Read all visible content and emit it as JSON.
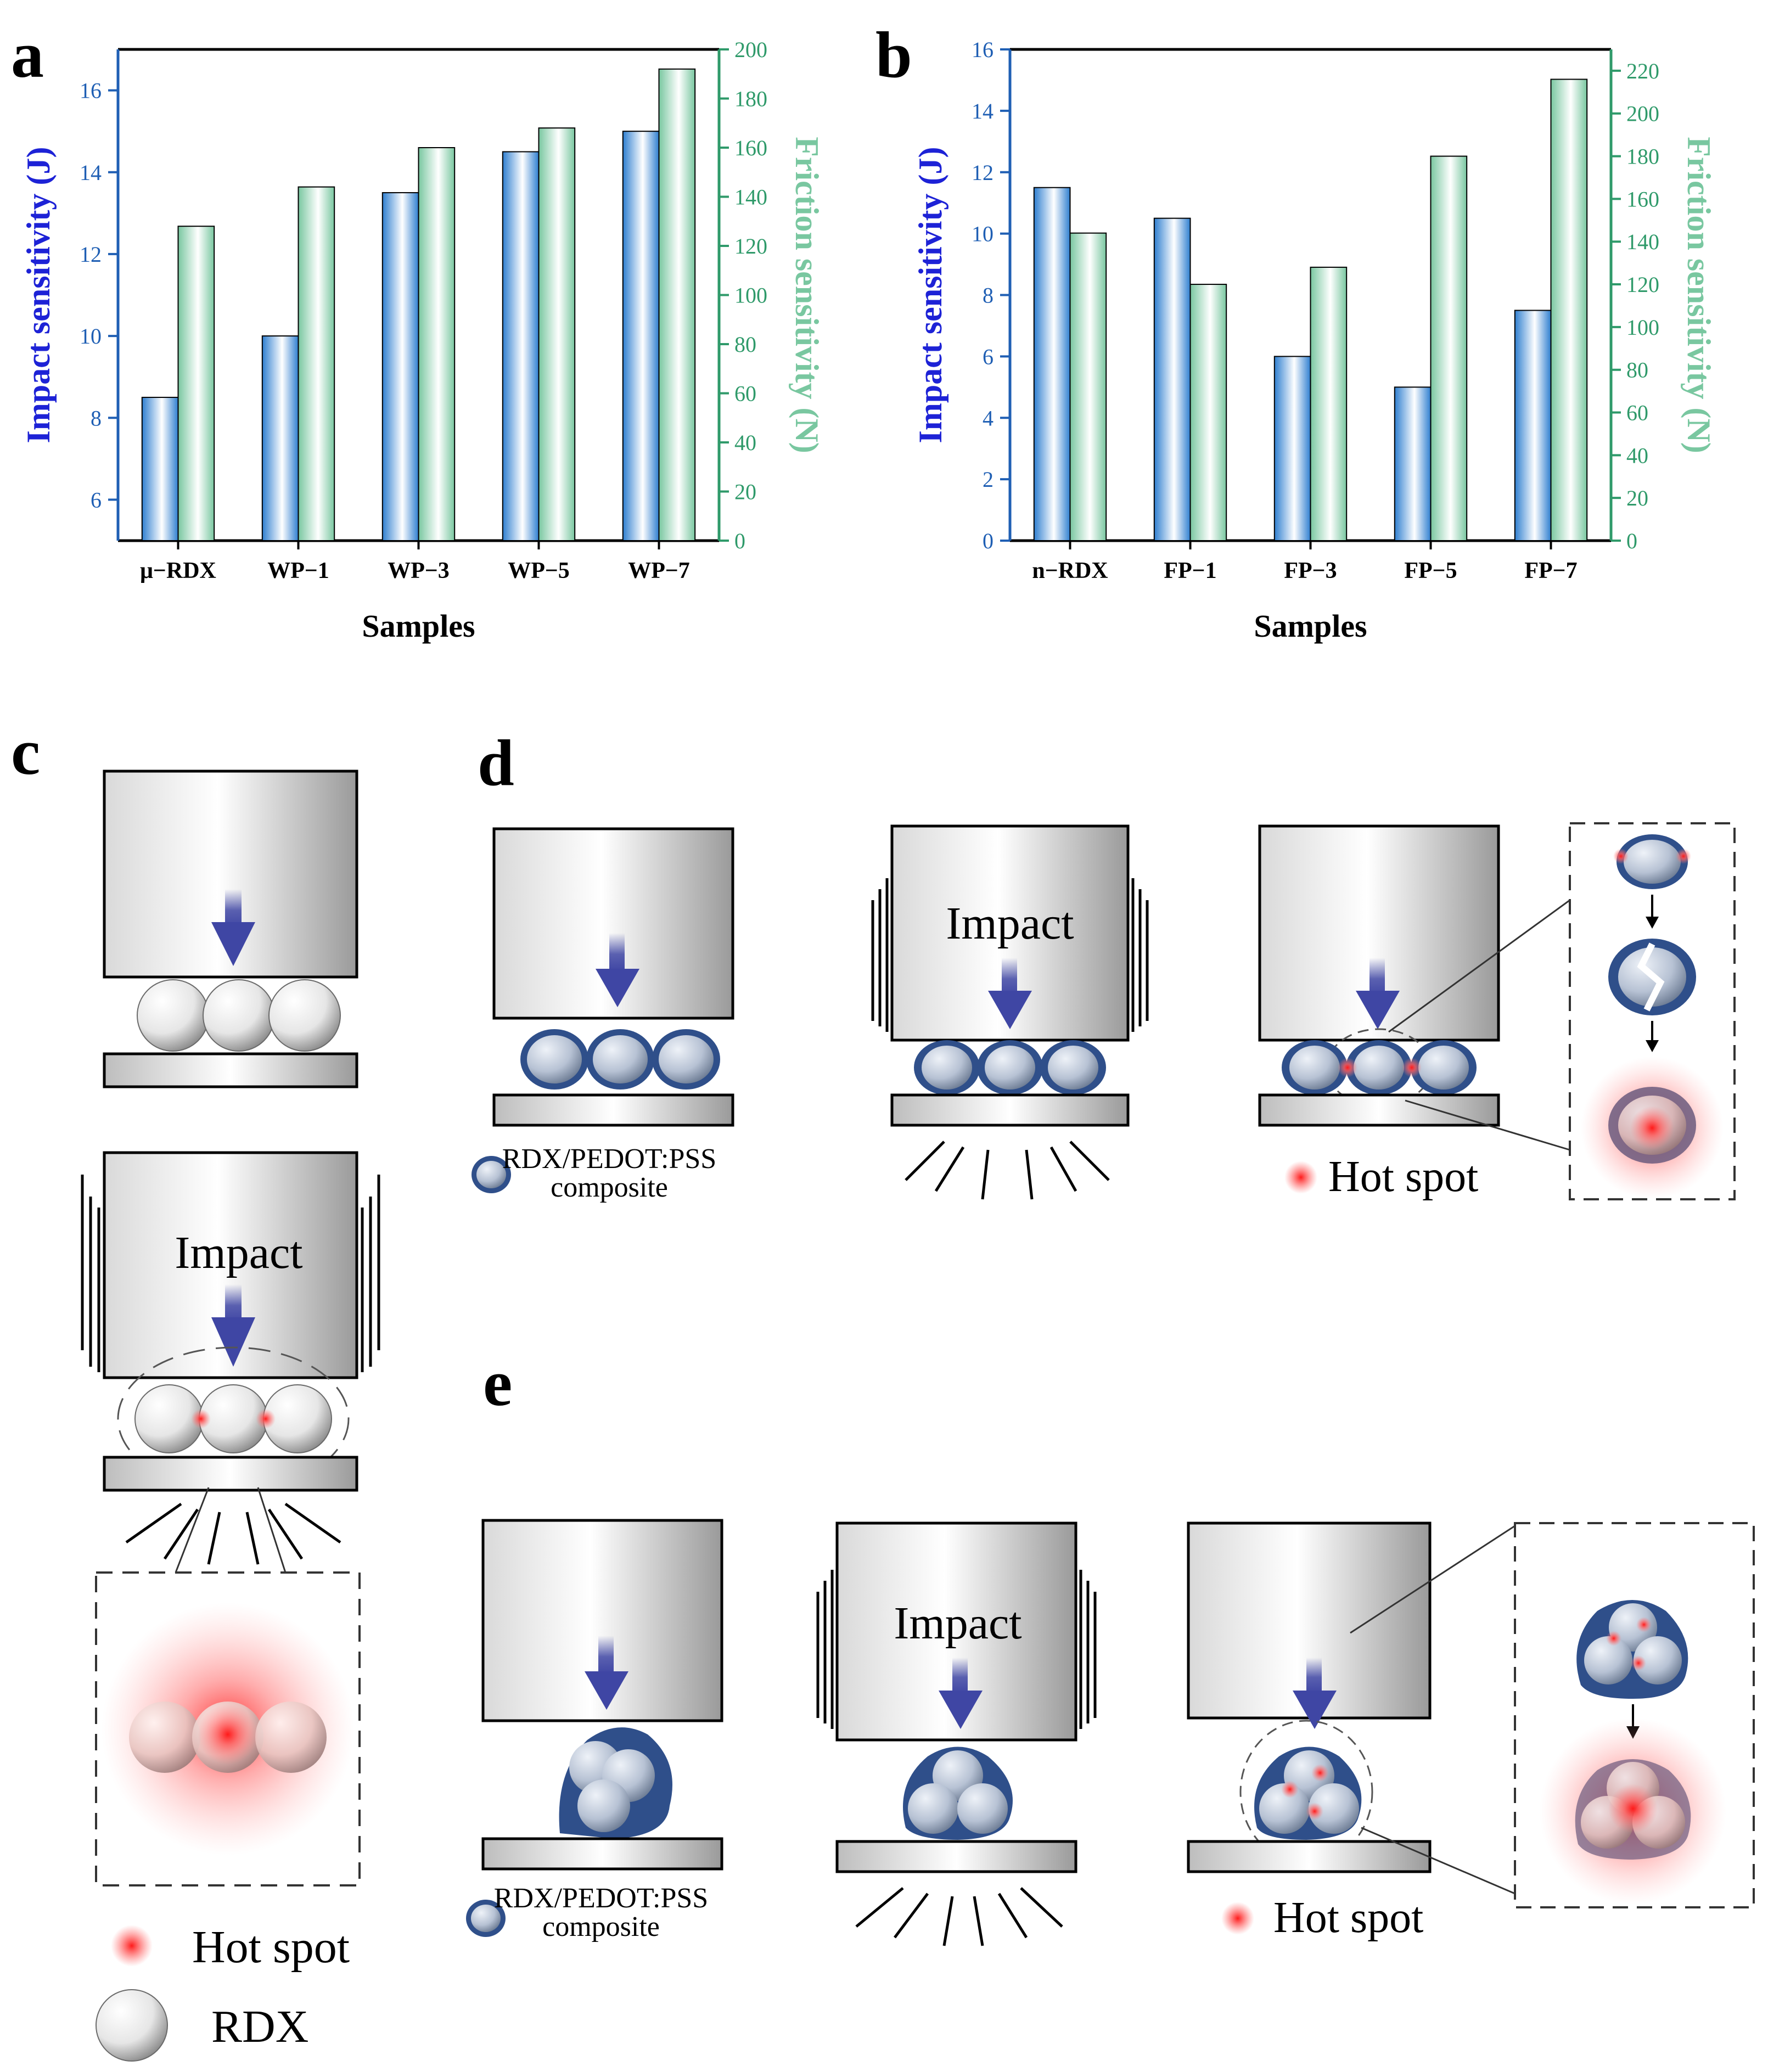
{
  "panel_labels": {
    "a": "a",
    "b": "b",
    "c": "c",
    "d": "d",
    "e": "e"
  },
  "colors": {
    "impact": "#2f7fd0",
    "friction": "#79c7a0",
    "impact_label": "#1d22d6",
    "left_axis": "#1f5fb4",
    "right_axis": "#2f9a6a",
    "composite_shell": "#2f4f8a",
    "arrow": "#3f46a4",
    "hot": "#ff2a2a"
  },
  "chart_data": [
    {
      "type": "bar",
      "panel": "a",
      "categories": [
        "μ−RDX",
        "WP−1",
        "WP−3",
        "WP−5",
        "WP−7"
      ],
      "series": [
        {
          "name": "Impact sensitivity (J)",
          "axis": "left",
          "values": [
            8.5,
            10,
            13.5,
            14.5,
            15
          ]
        },
        {
          "name": "Friction sensitivity (N)",
          "axis": "right",
          "values": [
            128,
            144,
            160,
            168,
            192
          ]
        }
      ],
      "xlabel": "Samples",
      "ylabel": "Impact sensitivity (J)",
      "y2label": "Friction sensitivity (N)",
      "ylim": [
        5,
        17
      ],
      "y2lim": [
        0,
        200
      ],
      "yticks": [
        6,
        8,
        10,
        12,
        14,
        16
      ],
      "y2ticks": [
        0,
        20,
        40,
        60,
        80,
        100,
        120,
        140,
        160,
        180,
        200
      ]
    },
    {
      "type": "bar",
      "panel": "b",
      "categories": [
        "n−RDX",
        "FP−1",
        "FP−3",
        "FP−5",
        "FP−7"
      ],
      "series": [
        {
          "name": "Impact sensitivity (J)",
          "axis": "left",
          "values": [
            11.5,
            10.5,
            6,
            5,
            7.5
          ]
        },
        {
          "name": "Friction sensitivity (N)",
          "axis": "right",
          "values": [
            144,
            120,
            128,
            180,
            216
          ]
        }
      ],
      "xlabel": "Samples",
      "ylabel": "Impact sensitivity (J)",
      "y2label": "Friction sensitivity (N)",
      "ylim": [
        0,
        16
      ],
      "y2lim": [
        0,
        230
      ],
      "yticks": [
        0,
        2,
        4,
        6,
        8,
        10,
        12,
        14,
        16
      ],
      "y2ticks": [
        0,
        20,
        40,
        60,
        80,
        100,
        120,
        140,
        160,
        180,
        200,
        220
      ]
    }
  ],
  "diagram": {
    "impact_label": "Impact",
    "hot_spot": "Hot spot",
    "rdx": "RDX",
    "composite_line1": "RDX/PEDOT:PSS",
    "composite_line2": "composite"
  }
}
